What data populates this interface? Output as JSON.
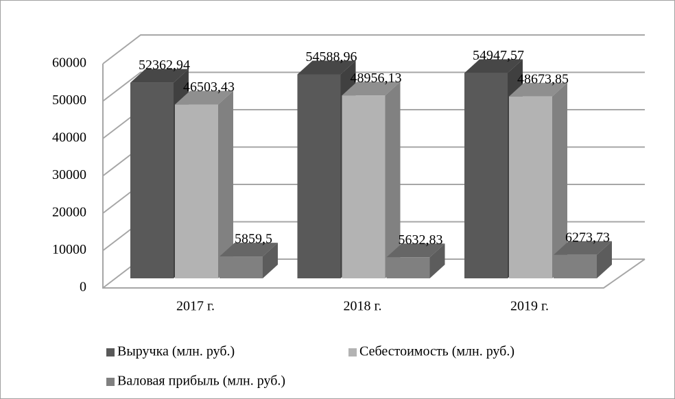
{
  "chart_data": {
    "type": "bar3d",
    "categories": [
      "2017 г.",
      "2018 г.",
      "2019 г."
    ],
    "series": [
      {
        "name": "Выручка (млн. руб.)",
        "color": "#595959",
        "values": [
          52362.94,
          54588.96,
          54947.57
        ],
        "value_labels": [
          "52362,94",
          "54588,96",
          "54947,57"
        ]
      },
      {
        "name": "Себестоимость (млн. руб.)",
        "color": "#b3b3b3",
        "values": [
          46503.43,
          48956.13,
          48673.85
        ],
        "value_labels": [
          "46503,43",
          "48956,13",
          "48673,85"
        ]
      },
      {
        "name": "Валовая прибыль (млн. руб.)",
        "color": "#808080",
        "values": [
          5859.5,
          5632.83,
          6273.73
        ],
        "value_labels": [
          "5859,5",
          "5632,83",
          "6273,73"
        ]
      }
    ],
    "ylim": [
      0,
      60000
    ],
    "yticks": [
      0,
      10000,
      20000,
      30000,
      40000,
      50000,
      60000
    ],
    "grid": true
  }
}
